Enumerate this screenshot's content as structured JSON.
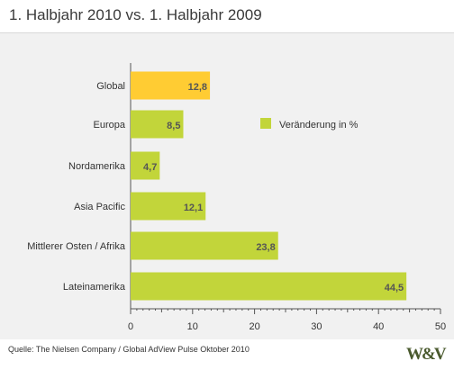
{
  "title": "1. Halbjahr 2010 vs. 1. Halbjahr 2009",
  "source": "Quelle: The Nielsen Company / Global AdView Pulse Oktober 2010",
  "logo_text": "W&V",
  "colors": {
    "highlight_bar": "#ffcc33",
    "bar": "#c2d53a",
    "background": "#f1f1f1",
    "value_label": "#555555"
  },
  "chart_data": {
    "type": "bar",
    "orientation": "horizontal",
    "title": "1. Halbjahr 2010 vs. 1. Halbjahr 2009",
    "categories": [
      "Global",
      "Europa",
      "Nordamerika",
      "Asia Pacific",
      "Mittlerer Osten / Afrika",
      "Lateinamerika"
    ],
    "values": [
      12.8,
      8.5,
      4.7,
      12.1,
      23.8,
      44.5
    ],
    "value_labels": [
      "12,8",
      "8,5",
      "4,7",
      "12,1",
      "23,8",
      "44,5"
    ],
    "highlight_index": 0,
    "series": [
      {
        "name": "Veränderung in %",
        "values": [
          12.8,
          8.5,
          4.7,
          12.1,
          23.8,
          44.5
        ]
      }
    ],
    "legend": "Veränderung in %",
    "legend_position": "top-right",
    "xlim": [
      0,
      50
    ],
    "xticks": [
      0,
      10,
      20,
      30,
      40,
      50
    ],
    "xlabel": "",
    "ylabel": "",
    "grid": false
  }
}
